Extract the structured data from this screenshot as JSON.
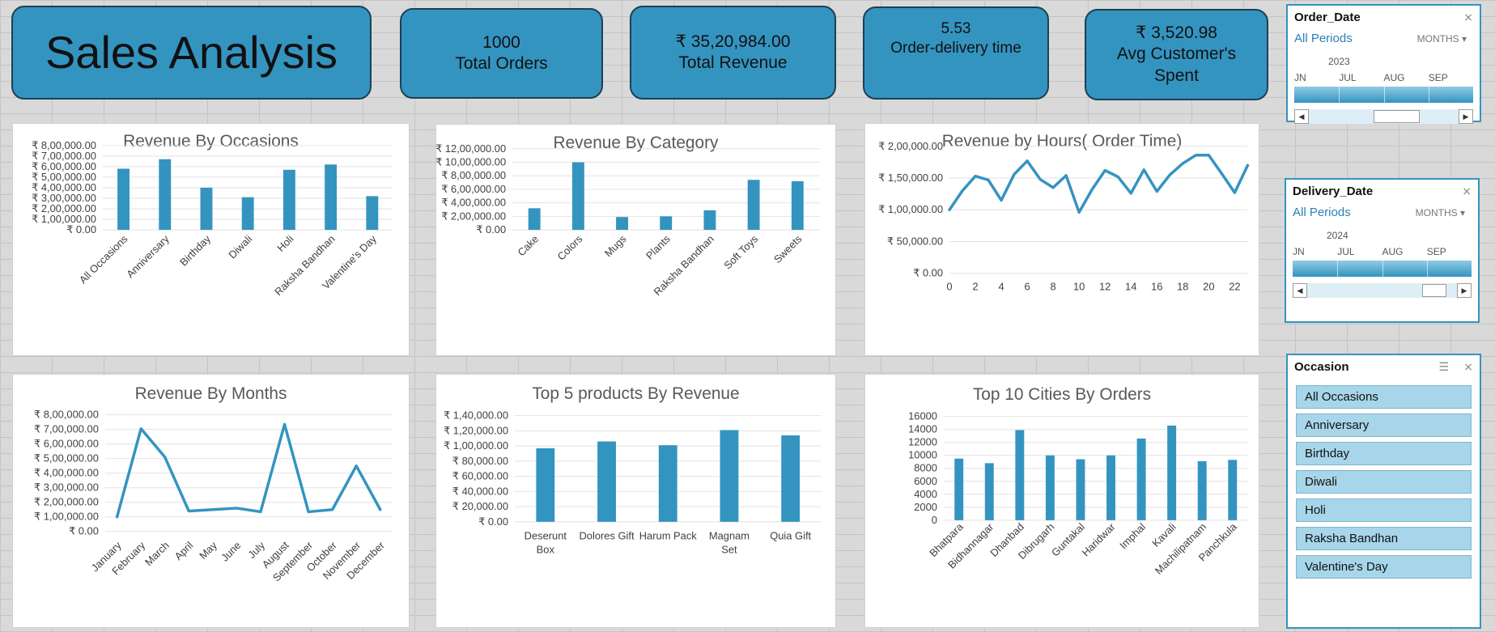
{
  "dashboard": {
    "title": "Sales Analysis",
    "kpis": [
      {
        "value": "1000",
        "label": "Total Orders"
      },
      {
        "value": "₹ 35,20,984.00",
        "label": "Total Revenue"
      },
      {
        "value": "5.53",
        "label": "Order-delivery time"
      },
      {
        "value": "₹ 3,520.98",
        "label": "Avg Customer's Spent"
      }
    ]
  },
  "colors": {
    "accent": "#3494c0",
    "slicer_item": "#a7d6ea"
  },
  "slicers": {
    "order_date": {
      "title": "Order_Date",
      "all_label": "All Periods",
      "level": "MONTHS",
      "year": "2023",
      "months": [
        "JN",
        "JUL",
        "AUG",
        "SEP"
      ],
      "clear_icon": "filter-clear-icon"
    },
    "delivery_date": {
      "title": "Delivery_Date",
      "all_label": "All Periods",
      "level": "MONTHS",
      "year": "2024",
      "months": [
        "JN",
        "JUL",
        "AUG",
        "SEP"
      ],
      "clear_icon": "filter-clear-icon"
    },
    "occasion": {
      "title": "Occasion",
      "items": [
        "All Occasions",
        "Anniversary",
        "Birthday",
        "Diwali",
        "Holi",
        "Raksha Bandhan",
        "Valentine's Day"
      ],
      "multiselect_icon": "multi-select-icon",
      "clear_icon": "filter-clear-icon"
    }
  },
  "chart_data": [
    {
      "id": "occasions",
      "type": "bar",
      "title": "Revenue By Occasions",
      "categories": [
        "All Occasions",
        "Anniversary",
        "Birthday",
        "Diwali",
        "Holi",
        "Raksha Bandhan",
        "Valentine's Day"
      ],
      "values": [
        580000,
        670000,
        400000,
        310000,
        570000,
        620000,
        320000
      ],
      "ylim": [
        0,
        800000
      ],
      "yticks": [
        "₹ 0.00",
        "₹ 1,00,000.00",
        "₹ 2,00,000.00",
        "₹ 3,00,000.00",
        "₹ 4,00,000.00",
        "₹ 5,00,000.00",
        "₹ 6,00,000.00",
        "₹ 7,00,000.00",
        "₹ 8,00,000.00"
      ]
    },
    {
      "id": "category",
      "type": "bar",
      "title": "Revenue By Category",
      "categories": [
        "Cake",
        "Colors",
        "Mugs",
        "Plants",
        "Raksha Bandhan",
        "Soft Toys",
        "Sweets"
      ],
      "values": [
        320000,
        1000000,
        190000,
        200000,
        290000,
        740000,
        720000
      ],
      "ylim": [
        0,
        1200000
      ],
      "yticks": [
        "₹ 0.00",
        "₹ 2,00,000.00",
        "₹ 4,00,000.00",
        "₹ 6,00,000.00",
        "₹ 8,00,000.00",
        "₹ 10,00,000.00",
        "₹ 12,00,000.00"
      ]
    },
    {
      "id": "hours",
      "type": "line",
      "title": "Revenue by Hours( Order Time)",
      "x": [
        0,
        1,
        2,
        3,
        4,
        5,
        6,
        7,
        8,
        9,
        10,
        11,
        12,
        13,
        14,
        15,
        16,
        17,
        18,
        19,
        20,
        21,
        22,
        23
      ],
      "values": [
        100000,
        130000,
        153000,
        147000,
        115000,
        156000,
        177000,
        148000,
        135000,
        154000,
        96000,
        132000,
        162000,
        152000,
        126000,
        163000,
        129000,
        155000,
        173000,
        186000,
        186000,
        157000,
        127000,
        170000
      ],
      "ylim": [
        0,
        200000
      ],
      "yticks": [
        "₹ 0.00",
        "₹ 50,000.00",
        "₹ 1,00,000.00",
        "₹ 1,50,000.00",
        "₹ 2,00,000.00"
      ],
      "xticks": [
        "0",
        "2",
        "4",
        "6",
        "8",
        "10",
        "12",
        "14",
        "16",
        "18",
        "20",
        "22"
      ]
    },
    {
      "id": "months",
      "type": "line",
      "title": "Revenue By Months",
      "categories": [
        "January",
        "February",
        "March",
        "April",
        "May",
        "June",
        "July",
        "August",
        "September",
        "October",
        "November",
        "December"
      ],
      "values": [
        100000,
        705000,
        510000,
        140000,
        150000,
        160000,
        135000,
        735000,
        135000,
        150000,
        450000,
        150000
      ],
      "ylim": [
        0,
        800000
      ],
      "yticks": [
        "₹ 0.00",
        "₹ 1,00,000.00",
        "₹ 2,00,000.00",
        "₹ 3,00,000.00",
        "₹ 4,00,000.00",
        "₹ 5,00,000.00",
        "₹ 6,00,000.00",
        "₹ 7,00,000.00",
        "₹ 8,00,000.00"
      ]
    },
    {
      "id": "products",
      "type": "bar",
      "title": "Top 5 products By Revenue",
      "categories": [
        "Deserunt Box",
        "Dolores Gift",
        "Harum Pack",
        "Magnam Set",
        "Quia Gift"
      ],
      "category_lines": [
        [
          "Deserunt",
          "Box"
        ],
        [
          "Dolores Gift"
        ],
        [
          "Harum Pack"
        ],
        [
          "Magnam",
          "Set"
        ],
        [
          "Quia Gift"
        ]
      ],
      "values": [
        97000,
        106000,
        101000,
        121000,
        114000
      ],
      "ylim": [
        0,
        140000
      ],
      "yticks": [
        "₹ 0.00",
        "₹ 20,000.00",
        "₹ 40,000.00",
        "₹ 60,000.00",
        "₹ 80,000.00",
        "₹ 1,00,000.00",
        "₹ 1,20,000.00",
        "₹ 1,40,000.00"
      ]
    },
    {
      "id": "cities",
      "type": "bar",
      "title": "Top 10 Cities By Orders",
      "categories": [
        "Bhatpara",
        "Bidhannagar",
        "Dhanbad",
        "Dibrugarh",
        "Guntakal",
        "Haridwar",
        "Imphal",
        "Kavali",
        "Machilipatnam",
        "Panchkula"
      ],
      "values": [
        9500,
        8800,
        13900,
        10000,
        9400,
        10000,
        12600,
        14600,
        9100,
        9300
      ],
      "ylim": [
        0,
        16000
      ],
      "yticks": [
        "0",
        "2000",
        "4000",
        "6000",
        "8000",
        "10000",
        "12000",
        "14000",
        "16000"
      ]
    }
  ]
}
